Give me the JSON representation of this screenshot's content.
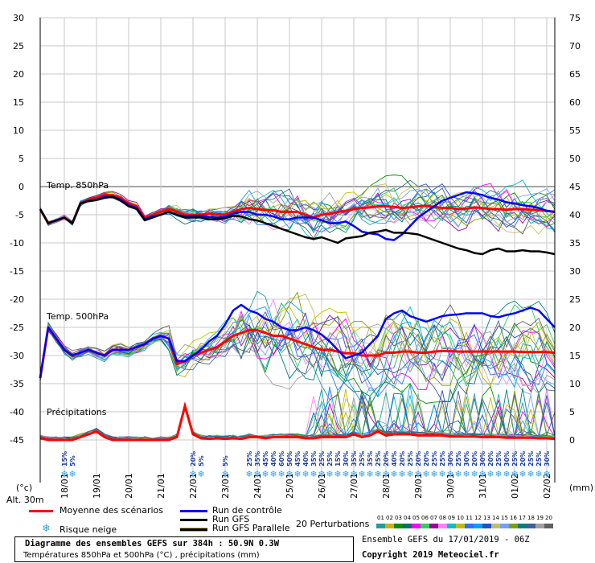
{
  "chart_data": {
    "type": "line",
    "x_dates": [
      "18/01",
      "19/01",
      "20/01",
      "21/01",
      "22/01",
      "23/01",
      "24/01",
      "25/01",
      "26/01",
      "27/01",
      "28/01",
      "29/01",
      "30/01",
      "31/01",
      "01/02",
      "02/02"
    ],
    "x_range_hours": [
      0,
      384
    ],
    "y_left_ticks": [
      30,
      25,
      20,
      15,
      10,
      5,
      0,
      -5,
      -10,
      -15,
      -20,
      -25,
      -30,
      -35,
      -40,
      -45
    ],
    "y_right_ticks": [
      75,
      70,
      65,
      60,
      55,
      50,
      45,
      40,
      35,
      30,
      25,
      20,
      15,
      10,
      5,
      0
    ],
    "y_left_unit": "(°c)",
    "y_right_unit": "(mm)",
    "altitude": "Alt. 30m",
    "panel_labels": {
      "t850": "Temp. 850hPa",
      "t500": "Temp. 500hPa",
      "precip": "Précipitations"
    },
    "x_hours": [
      0,
      6,
      12,
      18,
      24,
      30,
      36,
      42,
      48,
      54,
      60,
      66,
      72,
      78,
      84,
      90,
      96,
      102,
      108,
      114,
      120,
      126,
      132,
      138,
      144,
      150,
      156,
      162,
      168,
      174,
      180,
      186,
      192,
      198,
      204,
      210,
      216,
      222,
      228,
      234,
      240,
      246,
      252,
      258,
      264,
      270,
      276,
      282,
      288,
      294,
      300,
      306,
      312,
      318,
      324,
      330,
      336,
      342,
      348,
      354,
      360,
      366,
      372,
      378,
      384
    ],
    "series": [
      {
        "name": "Moyenne des scénarios",
        "role": "mean",
        "color": "#ff0000",
        "t850": [
          -4,
          -6.5,
          -6,
          -5.5,
          -6.5,
          -3,
          -2.3,
          -2,
          -1.5,
          -1.5,
          -2,
          -3,
          -3.5,
          -5.5,
          -5,
          -4.5,
          -4,
          -4.5,
          -5,
          -5,
          -5,
          -4.8,
          -5,
          -5,
          -4.5,
          -4,
          -3.8,
          -4,
          -4.2,
          -4.2,
          -4.5,
          -4.5,
          -4.5,
          -5,
          -5.5,
          -5,
          -4.8,
          -4.5,
          -4.3,
          -4,
          -3.8,
          -3.7,
          -3.5,
          -3.5,
          -3.6,
          -3.8,
          -3.7,
          -3.5,
          -3.4,
          -3.6,
          -3.8,
          -3.8,
          -4,
          -3.9,
          -3.7,
          -3.8,
          -4,
          -4,
          -4.1,
          -4,
          -4,
          -4.1,
          -4.2,
          -4.3,
          -4.5
        ],
        "t500": [
          -34,
          -25,
          -27,
          -29,
          -30,
          -29.5,
          -29,
          -29.5,
          -30,
          -29,
          -29,
          -29,
          -28.5,
          -28,
          -27,
          -26.5,
          -27,
          -31.5,
          -31,
          -30,
          -29.5,
          -29,
          -28.5,
          -27.5,
          -26.5,
          -26,
          -25.5,
          -25.5,
          -26,
          -26.5,
          -26.5,
          -27,
          -27.5,
          -28,
          -28.5,
          -29,
          -29,
          -29.3,
          -29.6,
          -29.6,
          -30,
          -30,
          -30,
          -29.5,
          -29.5,
          -29.3,
          -29.3,
          -29.5,
          -29.5,
          -29.3,
          -29.2,
          -29.2,
          -29.3,
          -29.3,
          -29.3,
          -29.3,
          -29.3,
          -29.3,
          -29.3,
          -29.3,
          -29.4,
          -29.4,
          -29.4,
          -29.4,
          -29.5
        ],
        "precip": [
          0.3,
          0,
          0,
          0,
          0,
          0.5,
          1,
          1.5,
          0.5,
          0,
          0,
          0,
          0,
          0,
          0,
          0,
          0,
          0.5,
          6,
          1,
          0.3,
          0.2,
          0.3,
          0.2,
          0.3,
          0.2,
          0.5,
          0.5,
          0.3,
          0.5,
          0.5,
          0.5,
          0.5,
          0.3,
          0.3,
          0.5,
          0.5,
          0.5,
          0.5,
          1,
          0.5,
          0.8,
          1.5,
          0.8,
          1,
          1,
          1,
          0.8,
          0.8,
          0.8,
          0.8,
          0.6,
          0.6,
          0.6,
          0.6,
          0.5,
          0.5,
          0.5,
          0.4,
          0.4,
          0.4,
          0.4,
          0.3,
          0.3,
          0.2
        ]
      },
      {
        "name": "Run de contrôle",
        "role": "control",
        "color": "#0000ff",
        "t850": [
          -4,
          -6.5,
          -6,
          -5.5,
          -6.5,
          -3,
          -2.5,
          -2.3,
          -1.8,
          -1.8,
          -2.3,
          -3.3,
          -3.8,
          -5.8,
          -5.3,
          -5,
          -4.5,
          -5,
          -5.3,
          -5.2,
          -5.2,
          -5.4,
          -5.5,
          -5.4,
          -4.8,
          -4.5,
          -4.5,
          -5,
          -5,
          -5.3,
          -5.8,
          -5.8,
          -5.5,
          -5.5,
          -5.5,
          -6,
          -6.5,
          -6.5,
          -6.2,
          -7,
          -8,
          -8.3,
          -8.5,
          -9.3,
          -9.5,
          -8.5,
          -7,
          -5.5,
          -4.5,
          -3.5,
          -2.5,
          -2,
          -1.5,
          -1,
          -1.2,
          -1.5,
          -2,
          -2.3,
          -2.8,
          -3,
          -3.3,
          -3.5,
          -3.8,
          -4.3,
          -4.5
        ],
        "t500": [
          -34,
          -25,
          -27,
          -29,
          -30,
          -29.5,
          -29,
          -29.5,
          -30,
          -29,
          -29,
          -29,
          -28.5,
          -28,
          -27,
          -26.5,
          -27,
          -31,
          -31,
          -30,
          -29,
          -27.5,
          -26.5,
          -24.5,
          -22,
          -21,
          -22,
          -22.5,
          -23.5,
          -24,
          -25,
          -25.5,
          -25.5,
          -25,
          -25.5,
          -26.3,
          -27.5,
          -29,
          -30.5,
          -30,
          -29.5,
          -28,
          -26.5,
          -23.5,
          -22.5,
          -22,
          -23,
          -23.5,
          -24,
          -23.5,
          -23,
          -22.8,
          -22.7,
          -22.5,
          -22.5,
          -22.5,
          -23,
          -23.2,
          -22.8,
          -22.5,
          -22,
          -21.5,
          -22,
          -23.5,
          -25
        ]
      },
      {
        "name": "Run GFS",
        "role": "gfs",
        "color": "#000000",
        "t850": [
          -4,
          -6.5,
          -6,
          -5.5,
          -6.5,
          -3,
          -2.6,
          -2.4,
          -2,
          -1.8,
          -2.5,
          -3.5,
          -4,
          -6,
          -5.5,
          -5,
          -4.5,
          -5,
          -5.5,
          -5.5,
          -5.5,
          -5.8,
          -5.8,
          -5.6,
          -5.2,
          -5.3,
          -5.8,
          -6,
          -6.5,
          -7,
          -7.5,
          -8,
          -8.5,
          -9,
          -9.3,
          -9,
          -9.5,
          -10,
          -9.2,
          -9,
          -8.8,
          -8.2,
          -8,
          -7.7,
          -8.2,
          -8.2,
          -8.3,
          -8.5,
          -9,
          -9.5,
          -10,
          -10.5,
          -11,
          -11.3,
          -11.8,
          -12,
          -11.3,
          -11,
          -11.5,
          -11.5,
          -11.3,
          -11.5,
          -11.5,
          -11.7,
          -12
        ]
      },
      {
        "name": "Run GFS Parallele",
        "role": "gfs_parallel",
        "color": "#c8b400"
      }
    ],
    "perturbations_count": 20,
    "perturbation_colors": [
      "#1aa0a0",
      "#d4b000",
      "#009000",
      "#007070",
      "#ff00ff",
      "#30d060",
      "#a000a0",
      "#ff80ff",
      "#00c0c0",
      "#c0c000",
      "#3070ff",
      "#00a0ff",
      "#2050d0",
      "#c0c060",
      "#70a0ff",
      "#80a000",
      "#008080",
      "#4060a0",
      "#a0a0a0",
      "#606060"
    ],
    "snow_risk_pct": [
      {
        "date_hour": 18,
        "label": "15%"
      },
      {
        "date_hour": 24,
        "label": "5%"
      },
      {
        "date_hour": 114,
        "label": "20%"
      },
      {
        "date_hour": 120,
        "label": "5%"
      },
      {
        "date_hour": 138,
        "label": "5%"
      },
      {
        "date_hour": 156,
        "label": "25%"
      },
      {
        "date_hour": 162,
        "label": "35%"
      },
      {
        "date_hour": 168,
        "label": "45%"
      },
      {
        "date_hour": 174,
        "label": "40%"
      },
      {
        "date_hour": 180,
        "label": "60%"
      },
      {
        "date_hour": 186,
        "label": "50%"
      },
      {
        "date_hour": 192,
        "label": "45%"
      },
      {
        "date_hour": 198,
        "label": "40%"
      },
      {
        "date_hour": 204,
        "label": "35%"
      },
      {
        "date_hour": 210,
        "label": "25%"
      },
      {
        "date_hour": 216,
        "label": "25%"
      },
      {
        "date_hour": 222,
        "label": "15%"
      },
      {
        "date_hour": 228,
        "label": "30%"
      },
      {
        "date_hour": 234,
        "label": "35%"
      },
      {
        "date_hour": 240,
        "label": "25%"
      },
      {
        "date_hour": 246,
        "label": "35%"
      },
      {
        "date_hour": 252,
        "label": "25%"
      },
      {
        "date_hour": 258,
        "label": "20%"
      },
      {
        "date_hour": 264,
        "label": "40%"
      },
      {
        "date_hour": 270,
        "label": "20%"
      },
      {
        "date_hour": 276,
        "label": "25%"
      },
      {
        "date_hour": 282,
        "label": "20%"
      },
      {
        "date_hour": 288,
        "label": "20%"
      },
      {
        "date_hour": 294,
        "label": "25%"
      },
      {
        "date_hour": 300,
        "label": "25%"
      },
      {
        "date_hour": 306,
        "label": "30%"
      },
      {
        "date_hour": 312,
        "label": "25%"
      },
      {
        "date_hour": 318,
        "label": "30%"
      },
      {
        "date_hour": 324,
        "label": "20%"
      },
      {
        "date_hour": 330,
        "label": "30%"
      },
      {
        "date_hour": 336,
        "label": "20%"
      },
      {
        "date_hour": 342,
        "label": "25%"
      },
      {
        "date_hour": 348,
        "label": "30%"
      },
      {
        "date_hour": 354,
        "label": "25%"
      },
      {
        "date_hour": 360,
        "label": "20%"
      },
      {
        "date_hour": 366,
        "label": "25%"
      },
      {
        "date_hour": 372,
        "label": "25%"
      },
      {
        "date_hour": 378,
        "label": "30%"
      }
    ]
  },
  "legend": {
    "mean": "Moyenne des scénarios",
    "control": "Run de contrôle",
    "gfs": "Run GFS",
    "gfs_parallel": "Run GFS Parallele",
    "snow_risk": "Risque neige",
    "perturbations": "20 Perturbations",
    "pert_numbers": [
      "01",
      "02",
      "03",
      "04",
      "05",
      "06",
      "07",
      "08",
      "09",
      "10",
      "11",
      "12",
      "13",
      "14",
      "15",
      "16",
      "17",
      "18",
      "19",
      "20"
    ]
  },
  "footer": {
    "title": "Diagramme des ensembles GEFS sur 384h : 50.9N 0.3W",
    "subtitle": "Températures 850hPa et 500hPa (°C) , précipitations (mm)",
    "run_info": "Ensemble GEFS du 17/01/2019 - 06Z",
    "copyright": "Copyright 2019 Meteociel.fr"
  }
}
